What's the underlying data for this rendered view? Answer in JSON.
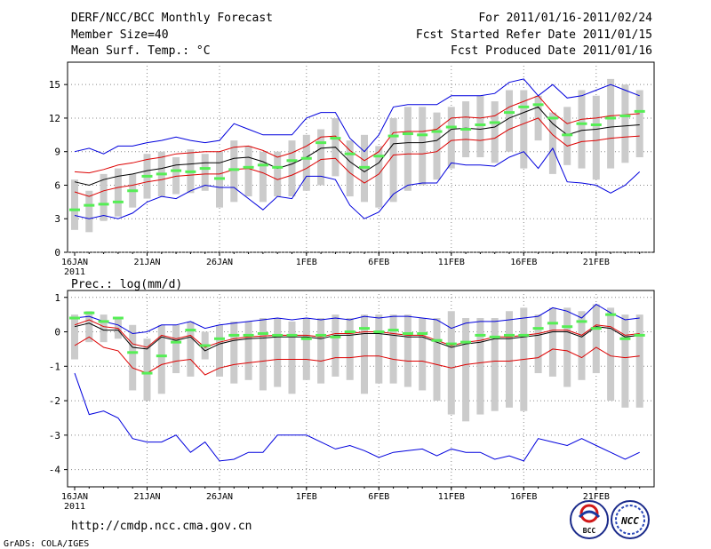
{
  "header": {
    "title": "DERF/NCC/BCC Monthly Forecast",
    "member_size": "Member Size=40",
    "var1_label": "Mean Surf. Temp.: °C",
    "period": "For 2011/01/16-2011/02/24",
    "started": "Fcst Started Refer Date 2011/01/15",
    "produced": "Fcst Produced Date 2011/01/16"
  },
  "footer": {
    "url": "http://cmdp.ncc.cma.gov.cn",
    "credit": "GrADS: COLA/IGES",
    "logo_left_text": "BCC",
    "logo_right_text": "NCC"
  },
  "colors": {
    "box": "#cbcbcb",
    "mean": "#55ee55",
    "blue": "#0000dd",
    "red": "#dd0000",
    "black": "#000000",
    "grid": "#888888"
  },
  "chart_data": [
    {
      "type": "line",
      "name": "temperature",
      "title": "Mean Surf. Temp.: °C",
      "ylim": [
        0,
        17
      ],
      "yticks": [
        0,
        3,
        6,
        9,
        12,
        15
      ],
      "xticks": [
        {
          "day": 1,
          "label": "16JAN",
          "sub": "2011"
        },
        {
          "day": 6,
          "label": "21JAN"
        },
        {
          "day": 11,
          "label": "26JAN"
        },
        {
          "day": 17,
          "label": "1FEB"
        },
        {
          "day": 22,
          "label": "6FEB"
        },
        {
          "day": 27,
          "label": "11FEB"
        },
        {
          "day": 32,
          "label": "16FEB"
        },
        {
          "day": 37,
          "label": "21FEB"
        }
      ],
      "days": [
        1,
        2,
        3,
        4,
        5,
        6,
        7,
        8,
        9,
        10,
        11,
        12,
        13,
        14,
        15,
        16,
        17,
        18,
        19,
        20,
        21,
        22,
        23,
        24,
        25,
        26,
        27,
        28,
        29,
        30,
        31,
        32,
        33,
        34,
        35,
        36,
        37,
        38,
        39,
        40
      ],
      "box_low": [
        2.0,
        1.8,
        2.8,
        3.2,
        4.0,
        4.8,
        5.0,
        5.2,
        5.3,
        5.5,
        4.0,
        4.5,
        5.0,
        4.5,
        5.0,
        5.0,
        5.5,
        6.0,
        6.8,
        5.0,
        4.5,
        4.0,
        4.5,
        5.5,
        6.0,
        6.5,
        7.5,
        8.5,
        8.5,
        8.0,
        9.0,
        7.5,
        10.0,
        7.0,
        7.8,
        7.5,
        6.5,
        7.5,
        8.0,
        8.5
      ],
      "box_high": [
        6.5,
        5.5,
        7.0,
        7.5,
        7.0,
        8.8,
        9.0,
        8.5,
        9.2,
        8.8,
        9.0,
        10.0,
        9.5,
        9.0,
        9.0,
        10.0,
        10.5,
        11.0,
        12.0,
        10.0,
        10.5,
        9.5,
        12.0,
        13.0,
        13.0,
        12.5,
        13.0,
        13.5,
        14.0,
        13.5,
        14.5,
        14.5,
        14.0,
        12.5,
        13.0,
        14.5,
        14.0,
        15.5,
        15.0,
        14.5
      ],
      "mean": [
        3.8,
        4.2,
        4.3,
        4.5,
        5.5,
        6.8,
        7.0,
        7.3,
        7.2,
        7.5,
        6.6,
        7.4,
        7.6,
        7.8,
        7.6,
        8.2,
        8.4,
        9.8,
        10.2,
        8.8,
        7.6,
        8.6,
        10.4,
        10.6,
        10.5,
        10.8,
        11.2,
        11.0,
        11.4,
        11.6,
        12.5,
        13.0,
        13.2,
        12.0,
        10.5,
        11.5,
        11.4,
        12.0,
        12.2,
        12.6
      ],
      "series": [
        {
          "name": "ensemble-mean",
          "color": "black",
          "values": [
            6.3,
            6.0,
            6.5,
            6.8,
            7.0,
            7.3,
            7.5,
            7.8,
            7.9,
            8.0,
            8.0,
            8.4,
            8.5,
            8.1,
            7.5,
            7.9,
            8.5,
            9.3,
            9.4,
            8.1,
            7.2,
            8.0,
            9.7,
            9.8,
            9.8,
            10.0,
            11.0,
            11.1,
            11.0,
            11.2,
            12.0,
            12.5,
            13.0,
            11.5,
            10.5,
            10.9,
            11.0,
            11.2,
            11.3,
            11.4
          ]
        },
        {
          "name": "upper-red",
          "color": "red",
          "values": [
            7.2,
            7.1,
            7.4,
            7.8,
            8.0,
            8.3,
            8.5,
            8.8,
            8.9,
            9.0,
            9.0,
            9.4,
            9.5,
            9.1,
            8.5,
            8.9,
            9.5,
            10.3,
            10.4,
            9.1,
            8.2,
            9.0,
            10.7,
            10.8,
            10.8,
            11.0,
            12.0,
            12.1,
            12.0,
            12.2,
            13.0,
            13.5,
            14.0,
            12.5,
            11.5,
            11.9,
            12.0,
            12.2,
            12.3,
            12.4
          ]
        },
        {
          "name": "lower-red",
          "color": "red",
          "values": [
            5.4,
            5.0,
            5.5,
            5.8,
            6.0,
            6.3,
            6.5,
            6.8,
            6.9,
            7.0,
            7.0,
            7.4,
            7.5,
            7.1,
            6.5,
            6.9,
            7.5,
            8.3,
            8.4,
            7.1,
            6.2,
            7.0,
            8.7,
            8.8,
            8.8,
            9.0,
            10.0,
            10.1,
            10.0,
            10.2,
            11.0,
            11.5,
            12.0,
            10.5,
            9.5,
            9.9,
            10.0,
            10.2,
            10.3,
            10.4
          ]
        },
        {
          "name": "upper-blue",
          "color": "blue",
          "values": [
            9.0,
            9.3,
            8.8,
            9.5,
            9.5,
            9.8,
            10.0,
            10.3,
            10.0,
            9.8,
            10.0,
            11.5,
            11.0,
            10.5,
            10.5,
            10.5,
            12.0,
            12.5,
            12.5,
            10.2,
            9.0,
            10.5,
            13.0,
            13.2,
            13.2,
            13.2,
            14.0,
            14.0,
            14.0,
            14.2,
            15.2,
            15.5,
            14.0,
            15.0,
            13.8,
            14.0,
            14.5,
            15.0,
            14.5,
            14.0
          ]
        },
        {
          "name": "lower-blue",
          "color": "blue",
          "values": [
            3.3,
            3.0,
            3.3,
            3.0,
            3.5,
            4.5,
            5.0,
            4.8,
            5.5,
            6.0,
            5.8,
            5.8,
            4.8,
            3.8,
            5.0,
            4.8,
            6.8,
            6.8,
            6.5,
            4.2,
            3.0,
            3.6,
            5.2,
            6.0,
            6.2,
            6.2,
            8.0,
            7.8,
            7.8,
            7.7,
            8.5,
            9.0,
            7.5,
            9.3,
            6.3,
            6.2,
            6.0,
            5.3,
            6.0,
            7.2
          ]
        }
      ]
    },
    {
      "type": "line",
      "name": "precipitation",
      "title": "Prec.: log(mm/d)",
      "ylim": [
        -4.5,
        1.2
      ],
      "yticks": [
        -4,
        -3,
        -2,
        -1,
        0,
        1
      ],
      "xticks": [
        {
          "day": 1,
          "label": "16JAN",
          "sub": "2011"
        },
        {
          "day": 6,
          "label": "21JAN"
        },
        {
          "day": 11,
          "label": "26JAN"
        },
        {
          "day": 17,
          "label": "1FEB"
        },
        {
          "day": 22,
          "label": "6FEB"
        },
        {
          "day": 27,
          "label": "11FEB"
        },
        {
          "day": 32,
          "label": "16FEB"
        },
        {
          "day": 37,
          "label": "21FEB"
        }
      ],
      "days": [
        1,
        2,
        3,
        4,
        5,
        6,
        7,
        8,
        9,
        10,
        11,
        12,
        13,
        14,
        15,
        16,
        17,
        18,
        19,
        20,
        21,
        22,
        23,
        24,
        25,
        26,
        27,
        28,
        29,
        30,
        31,
        32,
        33,
        34,
        35,
        36,
        37,
        38,
        39,
        40
      ],
      "box_low": [
        -0.8,
        -0.3,
        -0.3,
        -0.2,
        -1.7,
        -2.0,
        -1.8,
        -1.2,
        -1.3,
        -0.8,
        -1.3,
        -1.5,
        -1.4,
        -1.7,
        -1.6,
        -1.8,
        -1.4,
        -1.5,
        -1.3,
        -1.4,
        -1.8,
        -1.5,
        -1.5,
        -1.6,
        -1.7,
        -2.0,
        -2.4,
        -2.6,
        -2.4,
        -2.3,
        -2.2,
        -2.3,
        -1.2,
        -1.3,
        -1.6,
        -1.4,
        -1.2,
        -2.0,
        -2.2,
        -2.2
      ],
      "box_high": [
        0.5,
        0.6,
        0.5,
        0.4,
        0.2,
        -0.2,
        0.2,
        0.2,
        0.3,
        0.0,
        0.2,
        0.3,
        0.3,
        0.4,
        0.4,
        0.3,
        0.4,
        0.4,
        0.5,
        0.4,
        0.5,
        0.5,
        0.5,
        0.5,
        0.4,
        0.4,
        0.6,
        0.4,
        0.4,
        0.4,
        0.6,
        0.7,
        0.5,
        0.7,
        0.7,
        0.6,
        0.8,
        0.7,
        0.5,
        0.5
      ],
      "mean": [
        0.4,
        0.55,
        0.3,
        0.4,
        -0.6,
        -1.2,
        -0.7,
        -0.3,
        0.05,
        -0.4,
        -0.2,
        -0.1,
        -0.1,
        -0.05,
        -0.1,
        -0.1,
        -0.2,
        -0.1,
        -0.15,
        0.0,
        0.1,
        0.0,
        0.05,
        -0.05,
        -0.05,
        -0.25,
        -0.35,
        -0.3,
        -0.1,
        -0.15,
        -0.1,
        -0.1,
        0.1,
        0.25,
        0.15,
        0.3,
        0.1,
        0.5,
        -0.2,
        -0.1
      ],
      "series": [
        {
          "name": "ensemble-mean",
          "color": "black",
          "values": [
            0.15,
            0.25,
            0.05,
            0.05,
            -0.45,
            -0.5,
            -0.15,
            -0.25,
            -0.15,
            -0.55,
            -0.35,
            -0.25,
            -0.2,
            -0.18,
            -0.15,
            -0.15,
            -0.15,
            -0.2,
            -0.1,
            -0.1,
            -0.05,
            -0.05,
            -0.1,
            -0.15,
            -0.15,
            -0.3,
            -0.45,
            -0.35,
            -0.3,
            -0.2,
            -0.2,
            -0.15,
            -0.1,
            0.0,
            0.0,
            -0.15,
            0.15,
            0.1,
            -0.15,
            -0.1
          ]
        },
        {
          "name": "upper-red",
          "color": "red",
          "values": [
            0.2,
            0.35,
            0.15,
            0.1,
            -0.35,
            -0.45,
            -0.1,
            -0.2,
            -0.1,
            -0.45,
            -0.3,
            -0.2,
            -0.15,
            -0.12,
            -0.1,
            -0.1,
            -0.1,
            -0.15,
            -0.05,
            -0.05,
            0.0,
            0.0,
            -0.05,
            -0.1,
            -0.1,
            -0.25,
            -0.4,
            -0.3,
            -0.25,
            -0.15,
            -0.15,
            -0.1,
            -0.05,
            0.05,
            0.05,
            -0.1,
            0.2,
            0.15,
            -0.1,
            -0.05
          ]
        },
        {
          "name": "lower-red",
          "color": "red",
          "values": [
            -0.4,
            -0.15,
            -0.45,
            -0.55,
            -1.05,
            -1.2,
            -0.95,
            -0.85,
            -0.8,
            -1.25,
            -1.05,
            -0.95,
            -0.9,
            -0.85,
            -0.8,
            -0.8,
            -0.8,
            -0.85,
            -0.75,
            -0.75,
            -0.7,
            -0.7,
            -0.8,
            -0.85,
            -0.85,
            -0.95,
            -1.05,
            -0.95,
            -0.9,
            -0.85,
            -0.85,
            -0.8,
            -0.75,
            -0.5,
            -0.55,
            -0.75,
            -0.45,
            -0.7,
            -0.75,
            -0.7
          ]
        },
        {
          "name": "upper-blue",
          "color": "blue",
          "values": [
            0.4,
            0.45,
            0.3,
            0.2,
            -0.05,
            0.0,
            0.2,
            0.2,
            0.3,
            0.1,
            0.2,
            0.25,
            0.3,
            0.35,
            0.4,
            0.35,
            0.4,
            0.35,
            0.4,
            0.35,
            0.45,
            0.4,
            0.45,
            0.45,
            0.4,
            0.35,
            0.1,
            0.25,
            0.3,
            0.3,
            0.35,
            0.4,
            0.45,
            0.7,
            0.6,
            0.4,
            0.8,
            0.55,
            0.35,
            0.4
          ]
        },
        {
          "name": "lower-blue",
          "color": "blue",
          "values": [
            -1.2,
            -2.4,
            -2.3,
            -2.5,
            -3.1,
            -3.2,
            -3.2,
            -3.0,
            -3.5,
            -3.2,
            -3.75,
            -3.7,
            -3.5,
            -3.5,
            -3.0,
            -3.0,
            -3.0,
            -3.2,
            -3.4,
            -3.3,
            -3.45,
            -3.65,
            -3.5,
            -3.45,
            -3.4,
            -3.6,
            -3.4,
            -3.5,
            -3.5,
            -3.7,
            -3.6,
            -3.75,
            -3.1,
            -3.2,
            -3.3,
            -3.1,
            -3.3,
            -3.5,
            -3.7,
            -3.5
          ]
        }
      ]
    }
  ]
}
